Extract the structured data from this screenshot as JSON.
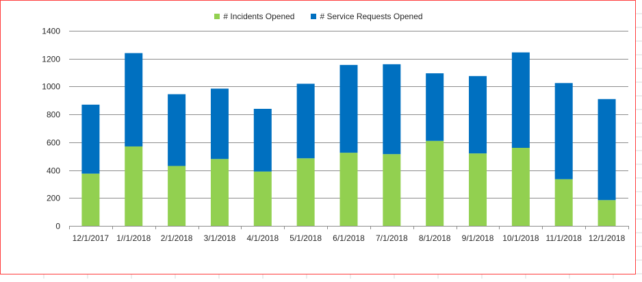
{
  "chart_data": {
    "type": "bar",
    "stacked": true,
    "categories": [
      "12/1/2017",
      "1//1/2018",
      "2/1/2018",
      "3/1/2018",
      "4/1/2018",
      "5/1/2018",
      "6/1/2018",
      "7/1/2018",
      "8/1/2018",
      "9/1/2018",
      "10/1/2018",
      "11/1/2018",
      "12/1/2018"
    ],
    "series": [
      {
        "name": "# Incidents Opened",
        "color": "#92d050",
        "values": [
          375,
          570,
          430,
          480,
          390,
          485,
          525,
          515,
          610,
          520,
          560,
          335,
          185
        ]
      },
      {
        "name": "# Service Requests Opened",
        "color": "#0070c0",
        "values": [
          495,
          670,
          515,
          505,
          450,
          535,
          630,
          645,
          485,
          555,
          685,
          690,
          725
        ]
      }
    ],
    "ylim": [
      0,
      1400
    ],
    "yticks": [
      0,
      200,
      400,
      600,
      800,
      1000,
      1200,
      1400
    ],
    "grid": true,
    "legend": "top-center",
    "title": "",
    "xlabel": "",
    "ylabel": ""
  },
  "colors": {
    "frame_border": "#ff3b3b",
    "gridline": "#8c8c8c",
    "sheet_gridline": "#d9d9d9"
  }
}
